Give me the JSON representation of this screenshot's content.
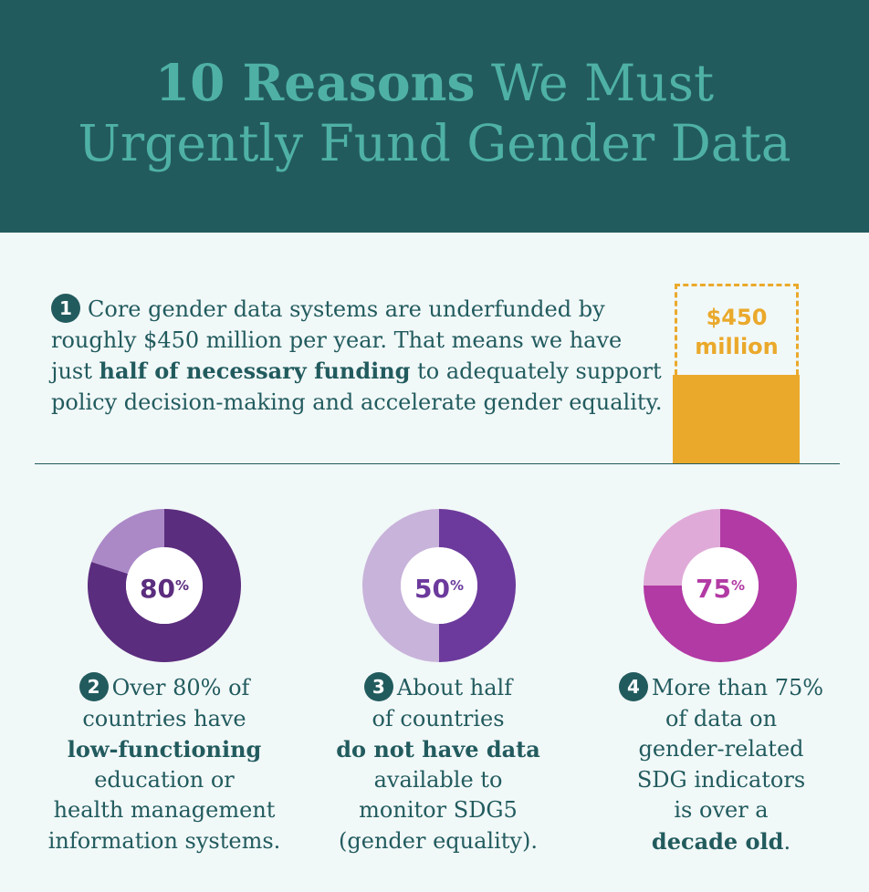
{
  "header": {
    "title_bold": "10 Reasons",
    "title_rest_line1": "We Must",
    "title_line2": "Urgently Fund Gender Data"
  },
  "reason1": {
    "number": "1",
    "text_before": "Core gender data systems are underfunded by roughly $450 million per year. That means we have just ",
    "text_bold": "half of necessary funding",
    "text_after": " to adequately support policy decision-making and accelerate gender equality.",
    "funding_label_line1": "$450",
    "funding_label_line2": "million",
    "funded_fraction": 0.5
  },
  "colors": {
    "header_bg": "#225b5e",
    "title": "#4fb1a6",
    "funding": "#eaa92b"
  },
  "chart_data": [
    {
      "type": "pie",
      "label": "80",
      "unit": "%",
      "values": [
        80,
        20
      ],
      "colors": [
        "#5b2d7e",
        "#ab89c7"
      ],
      "label_color": "#5b2d7e"
    },
    {
      "type": "pie",
      "label": "50",
      "unit": "%",
      "values": [
        50,
        50
      ],
      "colors": [
        "#6c3a9c",
        "#c8b3da"
      ],
      "label_color": "#6c3a9c"
    },
    {
      "type": "pie",
      "label": "75",
      "unit": "%",
      "values": [
        75,
        25
      ],
      "colors": [
        "#b23aa4",
        "#dfaad8"
      ],
      "label_color": "#b23aa4"
    }
  ],
  "reasons": [
    {
      "number": "2",
      "line1": "Over 80% of",
      "line2": "countries have",
      "bold": "low-functioning",
      "line4": "education or",
      "line5": "health management",
      "line6": "information systems."
    },
    {
      "number": "3",
      "line1": "About half",
      "line2": "of countries",
      "bold": "do not have data",
      "line4": "available to",
      "line5": "monitor SDG5",
      "line6": "(gender equality)."
    },
    {
      "number": "4",
      "line1": "More than 75%",
      "line2": "of data on",
      "line3": "gender-related",
      "line4": "SDG indicators",
      "line5": "is over a",
      "bold": "decade old",
      "end": "."
    }
  ]
}
